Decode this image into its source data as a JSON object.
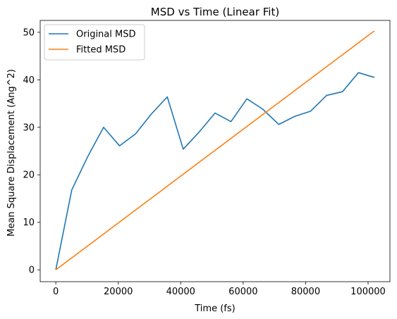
{
  "chart_data": {
    "type": "line",
    "title": "MSD vs Time (Linear Fit)",
    "xlabel": "Time (fs)",
    "ylabel": "Mean Square Displacement (Ang^2)",
    "xlim": [
      -5000,
      107000
    ],
    "ylim": [
      -2.5,
      52.5
    ],
    "xticks": [
      0,
      20000,
      40000,
      60000,
      80000,
      100000
    ],
    "xtick_labels": [
      "0",
      "20000",
      "40000",
      "60000",
      "80000",
      "100000"
    ],
    "yticks": [
      0,
      10,
      20,
      30,
      40,
      50
    ],
    "ytick_labels": [
      "0",
      "10",
      "20",
      "30",
      "40",
      "50"
    ],
    "grid": false,
    "legend_position": "top-left",
    "series": [
      {
        "name": "Original MSD",
        "color": "#1f77b4",
        "x": [
          0,
          5100,
          10200,
          15300,
          20400,
          25500,
          30600,
          35700,
          40800,
          45900,
          51000,
          56100,
          61200,
          66300,
          71400,
          76500,
          81600,
          86700,
          91800,
          96900,
          102000
        ],
        "y": [
          0,
          16.8,
          23.8,
          30.0,
          26.1,
          28.6,
          32.8,
          36.4,
          25.4,
          29.0,
          33.0,
          31.2,
          36.0,
          33.8,
          30.6,
          32.3,
          33.4,
          36.7,
          37.5,
          41.5,
          40.5
        ]
      },
      {
        "name": "Fitted MSD",
        "color": "#ff7f0e",
        "x": [
          0,
          102000
        ],
        "y": [
          0,
          50.3
        ]
      }
    ]
  }
}
